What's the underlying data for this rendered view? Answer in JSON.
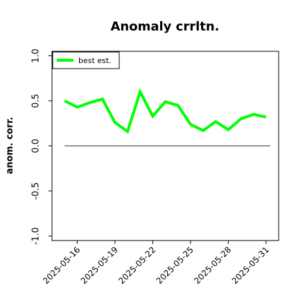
{
  "chart_data": {
    "type": "line",
    "title": "Anomaly crrltn.",
    "xlabel": "",
    "ylabel": "anom. corr.",
    "x": [
      "2025-05-15",
      "2025-05-16",
      "2025-05-17",
      "2025-05-18",
      "2025-05-19",
      "2025-05-20",
      "2025-05-21",
      "2025-05-22",
      "2025-05-23",
      "2025-05-24",
      "2025-05-25",
      "2025-05-26",
      "2025-05-27",
      "2025-05-28",
      "2025-05-29",
      "2025-05-30",
      "2025-05-31"
    ],
    "series": [
      {
        "name": "best est.",
        "color": "#00ff00",
        "values": [
          0.5,
          0.43,
          0.48,
          0.52,
          0.26,
          0.16,
          0.6,
          0.33,
          0.49,
          0.45,
          0.24,
          0.17,
          0.27,
          0.18,
          0.3,
          0.35,
          0.32
        ]
      }
    ],
    "reference_line": {
      "y": 0.0,
      "color": "#555555"
    },
    "xlim": [
      "2025-05-14",
      "2025-06-01"
    ],
    "ylim": [
      -1.05,
      1.05
    ],
    "yticks": [
      -1.0,
      -0.5,
      0.0,
      0.5,
      1.0
    ],
    "ytick_labels": [
      "-1.0",
      "-0.5",
      "0.0",
      "0.5",
      "1.0"
    ],
    "xticks": [
      "2025-05-16",
      "2025-05-19",
      "2025-05-22",
      "2025-05-25",
      "2025-05-28",
      "2025-05-31"
    ],
    "xtick_labels": [
      "2025-05-16",
      "2025-05-19",
      "2025-05-22",
      "2025-05-25",
      "2025-05-28",
      "2025-05-31"
    ],
    "legend_position": "top-left",
    "grid": false
  }
}
